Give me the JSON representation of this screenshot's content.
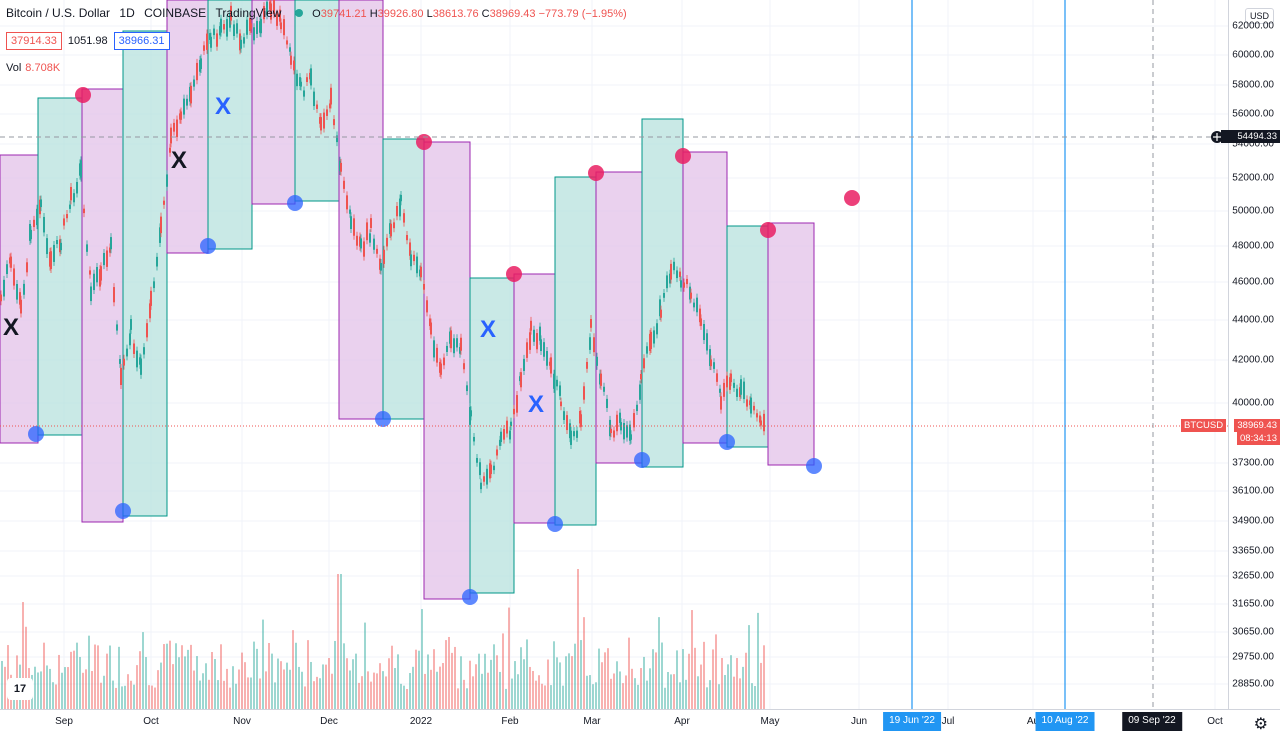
{
  "header": {
    "symbol_title": "Bitcoin / U.S. Dollar",
    "interval": "1D",
    "exchange": "COINBASE",
    "source": "TradingView",
    "ohlc": {
      "o_label": "O",
      "o": "39741.21",
      "h_label": "H",
      "h": "39926.80",
      "l_label": "L",
      "l": "38613.76",
      "c_label": "C",
      "c": "38969.43",
      "change": "−773.79 (−1.95%)"
    }
  },
  "trade": {
    "sell_price": "37914.33",
    "spread": "1051.98",
    "buy_price": "38966.31"
  },
  "volume": {
    "label": "Vol",
    "value": "8.708K"
  },
  "price_scale": {
    "currency": "USD",
    "ticks": [
      "62000.00",
      "60000.00",
      "58000.00",
      "56000.00",
      "54000.00",
      "52000.00",
      "50000.00",
      "48000.00",
      "46000.00",
      "44000.00",
      "42000.00",
      "40000.00",
      "37300.00",
      "36100.00",
      "34900.00",
      "33650.00",
      "32650.00",
      "31650.00",
      "30650.00",
      "29750.00",
      "28850.00"
    ],
    "crosshair_price": "54494.33",
    "symbol_tag": "BTCUSD",
    "last_price": "38969.43",
    "countdown": "08:34:13"
  },
  "time_scale": {
    "labels": [
      "Sep",
      "Oct",
      "Nov",
      "Dec",
      "2022",
      "Feb",
      "Mar",
      "Apr",
      "May",
      "Jun",
      "Jul",
      "Au",
      "Oct"
    ],
    "flag_1": "19 Jun '22",
    "flag_2": "10 Aug '22",
    "crosshair_date": "09 Sep '22"
  },
  "annotations": {
    "x_mark": "X"
  },
  "colors": {
    "up": "#26a69a",
    "down": "#ef5350",
    "pink_box": "#e1bee7",
    "green_box": "#b2dfdb",
    "pivot_high": "#e91e63",
    "pivot_low": "#2962ff",
    "accent": "#2196f3"
  },
  "icons": {
    "settings": "gear-icon",
    "logo": "tradingview-logo-icon",
    "crosshair": "crosshair-plus-icon"
  }
}
